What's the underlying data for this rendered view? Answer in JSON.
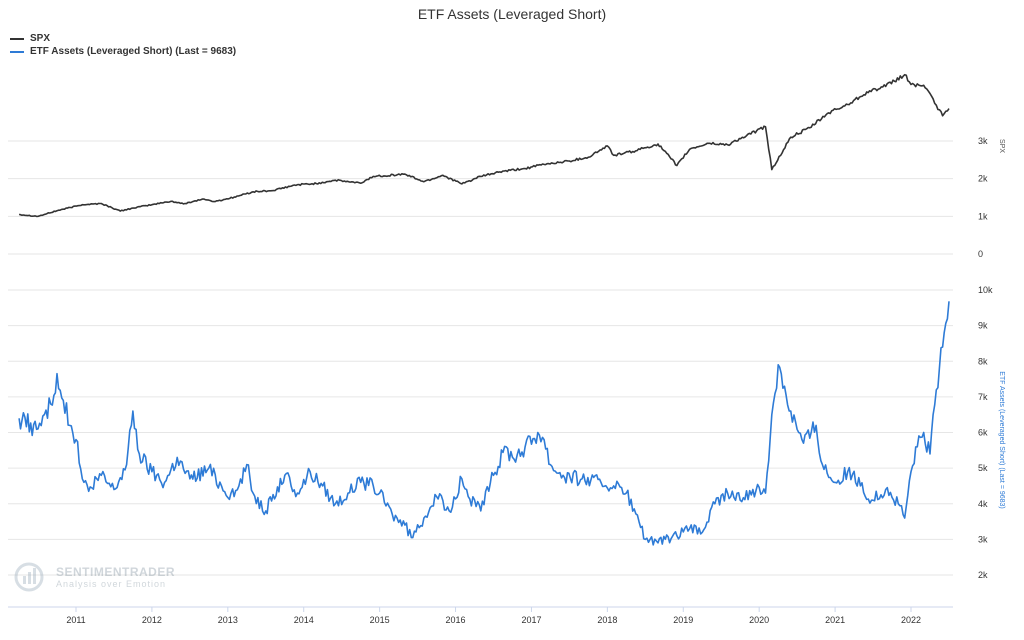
{
  "chart_data": {
    "type": "line",
    "title": "ETF Assets (Leveraged Short)",
    "legend_position": "top-left",
    "grid": true,
    "x_ticks": [
      "2011",
      "2012",
      "2013",
      "2014",
      "2015",
      "2016",
      "2017",
      "2018",
      "2019",
      "2020",
      "2021",
      "2022"
    ],
    "panels": [
      {
        "name": "top",
        "ylabel": "SPX",
        "ylim": [
          0,
          4800
        ],
        "y_ticks": [
          {
            "value": 0,
            "label": "0"
          },
          {
            "value": 1000,
            "label": "1k"
          },
          {
            "value": 2000,
            "label": "2k"
          },
          {
            "value": 3000,
            "label": "3k"
          }
        ],
        "series": [
          {
            "name": "SPX",
            "color": "#333333",
            "points": [
              {
                "x": "2010-04",
                "y": 1050
              },
              {
                "x": "2010-07",
                "y": 1000
              },
              {
                "x": "2010-10",
                "y": 1150
              },
              {
                "x": "2011-02",
                "y": 1310
              },
              {
                "x": "2011-05",
                "y": 1340
              },
              {
                "x": "2011-08",
                "y": 1140
              },
              {
                "x": "2011-10",
                "y": 1220
              },
              {
                "x": "2012-01",
                "y": 1310
              },
              {
                "x": "2012-04",
                "y": 1400
              },
              {
                "x": "2012-06",
                "y": 1330
              },
              {
                "x": "2012-09",
                "y": 1460
              },
              {
                "x": "2012-11",
                "y": 1390
              },
              {
                "x": "2013-02",
                "y": 1510
              },
              {
                "x": "2013-05",
                "y": 1650
              },
              {
                "x": "2013-08",
                "y": 1680
              },
              {
                "x": "2013-12",
                "y": 1840
              },
              {
                "x": "2014-03",
                "y": 1870
              },
              {
                "x": "2014-06",
                "y": 1960
              },
              {
                "x": "2014-10",
                "y": 1880
              },
              {
                "x": "2014-12",
                "y": 2060
              },
              {
                "x": "2015-05",
                "y": 2120
              },
              {
                "x": "2015-08",
                "y": 1920
              },
              {
                "x": "2015-11",
                "y": 2090
              },
              {
                "x": "2016-02",
                "y": 1860
              },
              {
                "x": "2016-05",
                "y": 2060
              },
              {
                "x": "2016-08",
                "y": 2180
              },
              {
                "x": "2016-12",
                "y": 2270
              },
              {
                "x": "2017-03",
                "y": 2380
              },
              {
                "x": "2017-07",
                "y": 2470
              },
              {
                "x": "2017-10",
                "y": 2570
              },
              {
                "x": "2018-01",
                "y": 2870
              },
              {
                "x": "2018-02",
                "y": 2620
              },
              {
                "x": "2018-05",
                "y": 2720
              },
              {
                "x": "2018-09",
                "y": 2920
              },
              {
                "x": "2018-12",
                "y": 2350
              },
              {
                "x": "2019-02",
                "y": 2780
              },
              {
                "x": "2019-05",
                "y": 2940
              },
              {
                "x": "2019-08",
                "y": 2900
              },
              {
                "x": "2019-11",
                "y": 3140
              },
              {
                "x": "2020-02",
                "y": 3380
              },
              {
                "x": "2020-03",
                "y": 2240
              },
              {
                "x": "2020-06",
                "y": 3100
              },
              {
                "x": "2020-09",
                "y": 3350
              },
              {
                "x": "2020-12",
                "y": 3750
              },
              {
                "x": "2021-03",
                "y": 3970
              },
              {
                "x": "2021-06",
                "y": 4300
              },
              {
                "x": "2021-09",
                "y": 4450
              },
              {
                "x": "2021-12",
                "y": 4760
              },
              {
                "x": "2022-01",
                "y": 4500
              },
              {
                "x": "2022-03",
                "y": 4480
              },
              {
                "x": "2022-05",
                "y": 3950
              },
              {
                "x": "2022-06",
                "y": 3670
              },
              {
                "x": "2022-07",
                "y": 3860
              }
            ]
          }
        ]
      },
      {
        "name": "bottom",
        "ylabel": "ETF Assets (Leveraged Short) (Last = 9683)",
        "ylim": [
          1500,
          10000
        ],
        "y_ticks": [
          {
            "value": 2000,
            "label": "2k"
          },
          {
            "value": 3000,
            "label": "3k"
          },
          {
            "value": 4000,
            "label": "4k"
          },
          {
            "value": 5000,
            "label": "5k"
          },
          {
            "value": 6000,
            "label": "6k"
          },
          {
            "value": 7000,
            "label": "7k"
          },
          {
            "value": 8000,
            "label": "8k"
          },
          {
            "value": 9000,
            "label": "9k"
          },
          {
            "value": 10000,
            "label": "10k"
          }
        ],
        "series": [
          {
            "name": "ETF Assets (Leveraged Short) (Last = 9683)",
            "color": "#2e7bd6",
            "points": [
              {
                "x": "2010-04",
                "y": 6400
              },
              {
                "x": "2010-07",
                "y": 6100
              },
              {
                "x": "2010-09",
                "y": 6800
              },
              {
                "x": "2010-10",
                "y": 7650
              },
              {
                "x": "2010-11",
                "y": 6900
              },
              {
                "x": "2010-12",
                "y": 6200
              },
              {
                "x": "2011-01",
                "y": 5800
              },
              {
                "x": "2011-02",
                "y": 4700
              },
              {
                "x": "2011-03",
                "y": 4350
              },
              {
                "x": "2011-05",
                "y": 4800
              },
              {
                "x": "2011-07",
                "y": 4400
              },
              {
                "x": "2011-09",
                "y": 5100
              },
              {
                "x": "2011-10",
                "y": 6600
              },
              {
                "x": "2011-11",
                "y": 5400
              },
              {
                "x": "2012-01",
                "y": 4900
              },
              {
                "x": "2012-03",
                "y": 4600
              },
              {
                "x": "2012-05",
                "y": 5300
              },
              {
                "x": "2012-07",
                "y": 4700
              },
              {
                "x": "2012-10",
                "y": 5000
              },
              {
                "x": "2012-12",
                "y": 4500
              },
              {
                "x": "2013-02",
                "y": 4200
              },
              {
                "x": "2013-04",
                "y": 5100
              },
              {
                "x": "2013-05",
                "y": 4300
              },
              {
                "x": "2013-07",
                "y": 3800
              },
              {
                "x": "2013-10",
                "y": 4800
              },
              {
                "x": "2013-12",
                "y": 4300
              },
              {
                "x": "2014-02",
                "y": 4900
              },
              {
                "x": "2014-04",
                "y": 4500
              },
              {
                "x": "2014-06",
                "y": 4000
              },
              {
                "x": "2014-08",
                "y": 4300
              },
              {
                "x": "2014-10",
                "y": 4600
              },
              {
                "x": "2014-12",
                "y": 4500
              },
              {
                "x": "2015-01",
                "y": 4300
              },
              {
                "x": "2015-03",
                "y": 3700
              },
              {
                "x": "2015-05",
                "y": 3400
              },
              {
                "x": "2015-06",
                "y": 3050
              },
              {
                "x": "2015-08",
                "y": 3600
              },
              {
                "x": "2015-10",
                "y": 4200
              },
              {
                "x": "2015-12",
                "y": 3800
              },
              {
                "x": "2016-02",
                "y": 4700
              },
              {
                "x": "2016-03",
                "y": 4200
              },
              {
                "x": "2016-05",
                "y": 3800
              },
              {
                "x": "2016-07",
                "y": 4800
              },
              {
                "x": "2016-09",
                "y": 5600
              },
              {
                "x": "2016-10",
                "y": 5300
              },
              {
                "x": "2016-12",
                "y": 5600
              },
              {
                "x": "2017-02",
                "y": 6000
              },
              {
                "x": "2017-03",
                "y": 5800
              },
              {
                "x": "2017-04",
                "y": 5100
              },
              {
                "x": "2017-06",
                "y": 4800
              },
              {
                "x": "2017-09",
                "y": 4700
              },
              {
                "x": "2017-12",
                "y": 4600
              },
              {
                "x": "2018-02",
                "y": 4500
              },
              {
                "x": "2018-04",
                "y": 4300
              },
              {
                "x": "2018-06",
                "y": 3500
              },
              {
                "x": "2018-07",
                "y": 3000
              },
              {
                "x": "2018-09",
                "y": 2900
              },
              {
                "x": "2018-12",
                "y": 3100
              },
              {
                "x": "2019-02",
                "y": 3300
              },
              {
                "x": "2019-04",
                "y": 3200
              },
              {
                "x": "2019-06",
                "y": 4000
              },
              {
                "x": "2019-08",
                "y": 4300
              },
              {
                "x": "2019-10",
                "y": 4100
              },
              {
                "x": "2019-12",
                "y": 4400
              },
              {
                "x": "2020-02",
                "y": 4300
              },
              {
                "x": "2020-03",
                "y": 6500
              },
              {
                "x": "2020-04",
                "y": 7900
              },
              {
                "x": "2020-05",
                "y": 7300
              },
              {
                "x": "2020-06",
                "y": 6600
              },
              {
                "x": "2020-08",
                "y": 5700
              },
              {
                "x": "2020-10",
                "y": 6200
              },
              {
                "x": "2020-11",
                "y": 5100
              },
              {
                "x": "2021-01",
                "y": 4600
              },
              {
                "x": "2021-03",
                "y": 4900
              },
              {
                "x": "2021-05",
                "y": 4500
              },
              {
                "x": "2021-07",
                "y": 4100
              },
              {
                "x": "2021-09",
                "y": 4400
              },
              {
                "x": "2021-11",
                "y": 4000
              },
              {
                "x": "2021-12",
                "y": 3600
              },
              {
                "x": "2022-01",
                "y": 4900
              },
              {
                "x": "2022-02",
                "y": 5600
              },
              {
                "x": "2022-03",
                "y": 6000
              },
              {
                "x": "2022-04",
                "y": 5400
              },
              {
                "x": "2022-05",
                "y": 7200
              },
              {
                "x": "2022-06",
                "y": 8400
              },
              {
                "x": "2022-07",
                "y": 9683
              }
            ]
          }
        ]
      }
    ]
  },
  "watermark": {
    "brand": "SENTIMENTRADER",
    "tagline": "Analysis over Emotion"
  }
}
